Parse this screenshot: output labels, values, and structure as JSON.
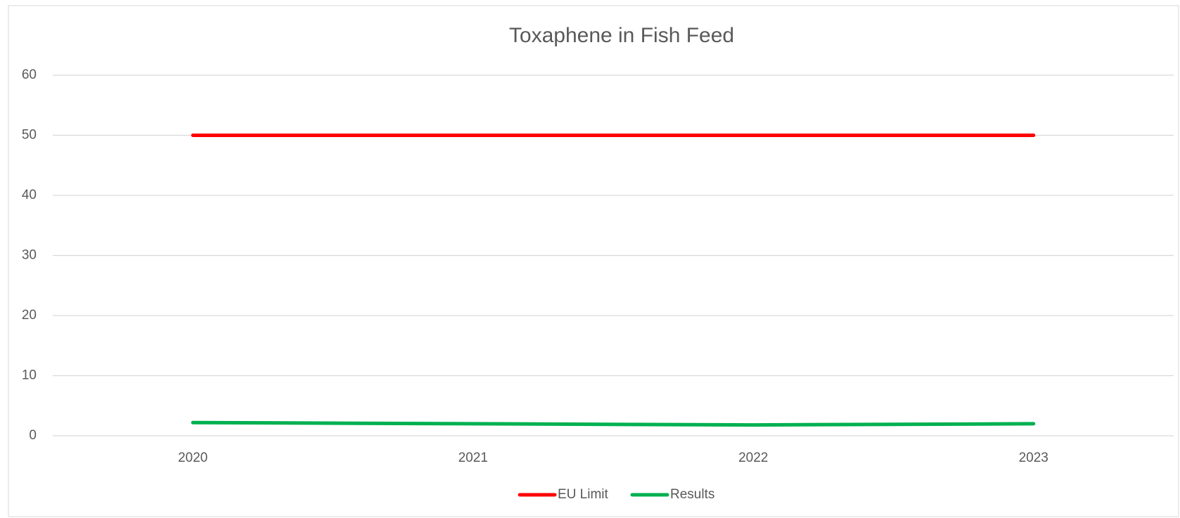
{
  "chart_data": {
    "type": "line",
    "title": "Toxaphene in Fish Feed",
    "categories": [
      "2020",
      "2021",
      "2022",
      "2023"
    ],
    "series": [
      {
        "name": "EU Limit",
        "color": "#ff0000",
        "values": [
          50,
          50,
          50,
          50
        ]
      },
      {
        "name": "Results",
        "color": "#00b050",
        "values": [
          2.2,
          2.0,
          1.8,
          2.0
        ]
      }
    ],
    "ylim": [
      0,
      60
    ],
    "yticks": [
      0,
      10,
      20,
      30,
      40,
      50,
      60
    ],
    "grid": true,
    "legend": "bottom"
  }
}
